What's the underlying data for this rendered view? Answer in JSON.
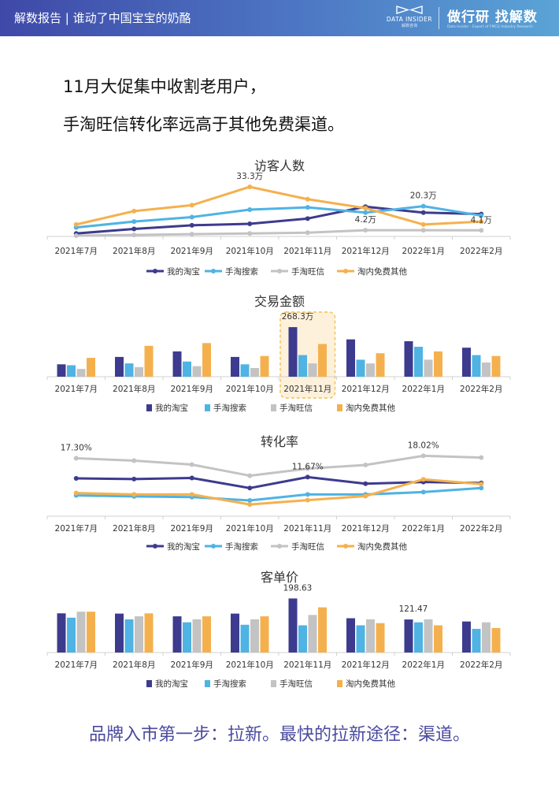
{
  "header": {
    "title": "解数报告 | 谁动了中国宝宝的奶酪",
    "brand_en": "DATA INSIDER",
    "brand_cn": "解数咨询",
    "slogan": "做行研 找解数",
    "slogan_sub": "Data Insider - Expert of FMCG Industry Research"
  },
  "headline": {
    "line1": "11月大促集中收割老用户，",
    "line2": "手淘旺信转化率远高于其他免费渠道。"
  },
  "footer": "品牌入市第一步：拉新。最快的拉新途径：渠道。",
  "colors": {
    "banner_start": "#3f49a8",
    "banner_end": "#5aa4d6",
    "series": [
      "#3d3b8e",
      "#4fb3e3",
      "#c3c3c3",
      "#f5b04e"
    ],
    "highlight_border": "#f2c14e",
    "highlight_fill": "#fdf1dc",
    "footer_text": "#4a4aa0"
  },
  "chart_data": [
    {
      "type": "line",
      "title": "访客人数",
      "categories": [
        "2021年7月",
        "2021年8月",
        "2021年9月",
        "2021年10月",
        "2021年11月",
        "2021年12月",
        "2022年1月",
        "2022年2月"
      ],
      "series": [
        {
          "name": "我的淘宝",
          "values": [
            2,
            5,
            7.5,
            8.5,
            12,
            20,
            16,
            15
          ]
        },
        {
          "name": "手淘搜索",
          "values": [
            6,
            10,
            13,
            18,
            19.5,
            16,
            20.3,
            14
          ]
        },
        {
          "name": "手淘旺信",
          "values": [
            0.5,
            1,
            1.5,
            2,
            2.5,
            4.2,
            4.2,
            4.1
          ]
        },
        {
          "name": "淘内免费其他",
          "values": [
            8,
            17,
            21,
            33.3,
            25,
            19,
            8,
            10
          ]
        }
      ],
      "annotations": [
        {
          "text": "33.3万",
          "series": 3,
          "index": 3
        },
        {
          "text": "4.2万",
          "series": 2,
          "index": 5
        },
        {
          "text": "20.3万",
          "series": 1,
          "index": 6
        },
        {
          "text": "4.1万",
          "series": 2,
          "index": 7
        }
      ],
      "ylim": [
        0,
        36
      ],
      "legend": "bottom"
    },
    {
      "type": "bar",
      "title": "交易金额",
      "categories": [
        "2021年7月",
        "2021年8月",
        "2021年9月",
        "2021年10月",
        "2021年11月",
        "2021年12月",
        "2022年1月",
        "2022年2月"
      ],
      "series": [
        {
          "name": "我的淘宝",
          "values": [
            67,
            107,
            137,
            107,
            268.3,
            202,
            192,
            157
          ]
        },
        {
          "name": "手淘搜索",
          "values": [
            62,
            72,
            82,
            67,
            117,
            92,
            162,
            117
          ]
        },
        {
          "name": "手淘旺信",
          "values": [
            42,
            52,
            57,
            47,
            72,
            72,
            92,
            77
          ]
        },
        {
          "name": "淘内免费其他",
          "values": [
            102,
            167,
            182,
            112,
            177,
            127,
            137,
            112
          ]
        }
      ],
      "annotations": [
        {
          "text": "268.3万",
          "series": 0,
          "index": 4
        }
      ],
      "highlight_index": 4,
      "ylim": [
        0,
        290
      ],
      "legend": "bottom"
    },
    {
      "type": "line",
      "title": "转化率",
      "categories": [
        "2021年7月",
        "2021年8月",
        "2021年9月",
        "2021年10月",
        "2021年11月",
        "2021年12月",
        "2022年1月",
        "2022年2月"
      ],
      "series": [
        {
          "name": "我的淘宝",
          "values": [
            11.3,
            11.1,
            11.4,
            8.4,
            11.67,
            9.7,
            10.2,
            9.9
          ]
        },
        {
          "name": "手淘搜索",
          "values": [
            6.2,
            5.9,
            5.7,
            4.7,
            6.5,
            6.5,
            7.2,
            8.4
          ]
        },
        {
          "name": "手淘旺信",
          "values": [
            17.3,
            16.6,
            15.4,
            12.1,
            14.2,
            15.3,
            18.02,
            17.5
          ]
        },
        {
          "name": "淘内免费其他",
          "values": [
            6.9,
            6.5,
            6.5,
            3.5,
            4.8,
            6.0,
            11.0,
            9.6
          ]
        }
      ],
      "annotations": [
        {
          "text": "17.30%",
          "series": 2,
          "index": 0
        },
        {
          "text": "11.67%",
          "series": 0,
          "index": 4
        },
        {
          "text": "18.02%",
          "series": 2,
          "index": 6
        }
      ],
      "ylim": [
        0,
        20
      ],
      "legend": "bottom"
    },
    {
      "type": "bar",
      "title": "客单价",
      "categories": [
        "2021年7月",
        "2021年8月",
        "2021年9月",
        "2021年10月",
        "2021年11月",
        "2021年12月",
        "2022年1月",
        "2022年2月"
      ],
      "series": [
        {
          "name": "我的淘宝",
          "values": [
            144,
            143,
            133,
            143,
            198.63,
            126,
            121.47,
            114
          ]
        },
        {
          "name": "手淘搜索",
          "values": [
            128,
            122,
            111,
            102,
            100,
            100,
            111,
            87
          ]
        },
        {
          "name": "手淘旺信",
          "values": [
            150,
            133,
            122,
            122,
            138,
            122,
            122,
            111
          ]
        },
        {
          "name": "淘内免费其他",
          "values": [
            150,
            144,
            133,
            133,
            166,
            108,
            100,
            90
          ]
        }
      ],
      "annotations": [
        {
          "text": "198.63",
          "series": 0,
          "index": 4
        },
        {
          "text": "121.47",
          "series": 0,
          "index": 6
        }
      ],
      "ylim": [
        0,
        220
      ],
      "legend": "bottom"
    }
  ]
}
